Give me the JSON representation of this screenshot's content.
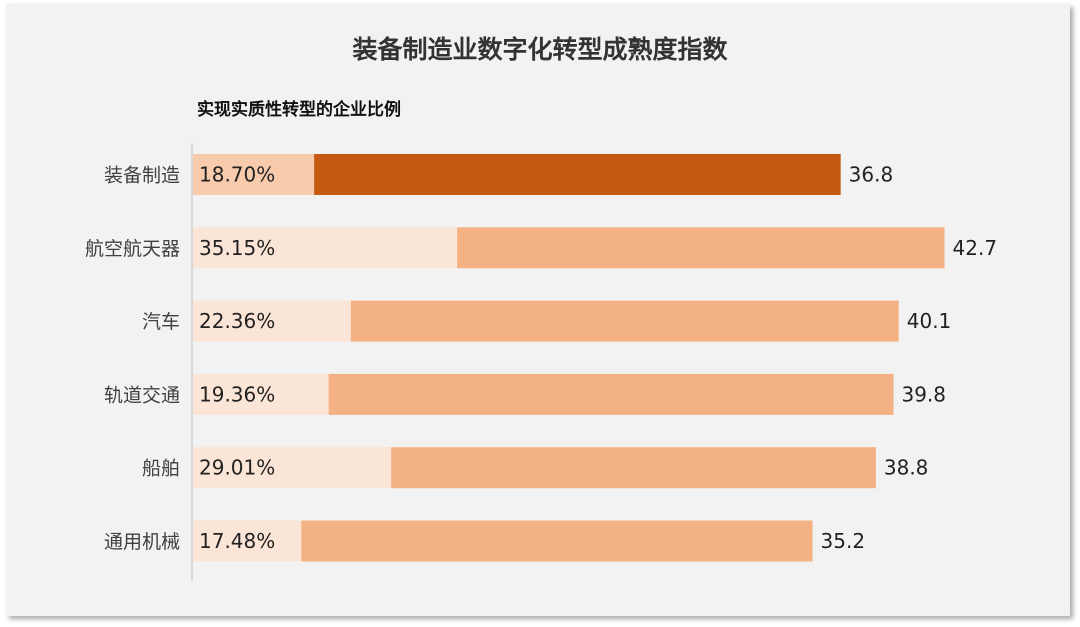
{
  "chart_data": {
    "type": "bar",
    "orientation": "horizontal",
    "title": "装备制造业数字化转型成熟度指数",
    "subtitle": "实现实质性转型的企业比例",
    "categories": [
      "装备制造",
      "航空航天器",
      "汽车",
      "轨道交通",
      "船舶",
      "通用机械"
    ],
    "percent_labels": [
      "18.70%",
      "35.15%",
      "22.36%",
      "19.36%",
      "29.01%",
      "17.48%"
    ],
    "values": [
      36.8,
      42.7,
      40.1,
      39.8,
      38.8,
      35.2
    ],
    "value_labels": [
      "36.8",
      "42.7",
      "40.1",
      "39.8",
      "38.8",
      "35.2"
    ],
    "highlight_index": 0,
    "colors": {
      "highlight_bar": "#c55a11",
      "highlight_segment": "#f8cbad",
      "bar": "#f4b183",
      "segment": "#fbe5d6",
      "axis": "#bfbfbf",
      "text": "#222222",
      "category_text": "#404040"
    }
  }
}
